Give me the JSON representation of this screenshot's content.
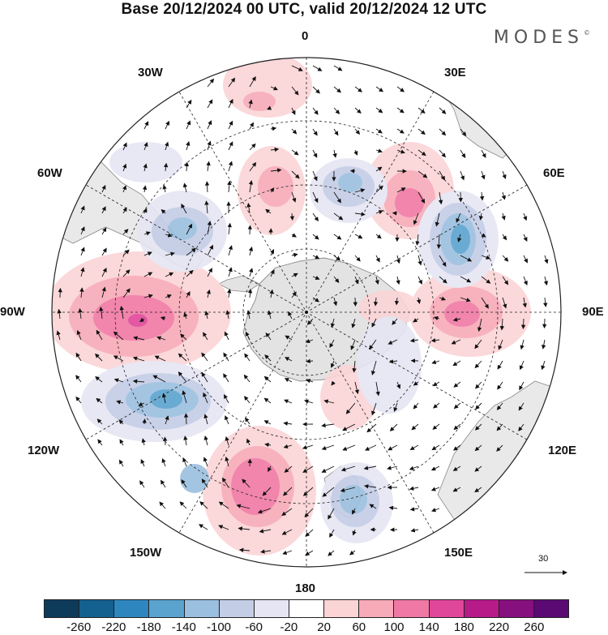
{
  "title": "Base 20/12/2024 00 UTC, valid 20/12/2024 12 UTC",
  "brand": "MODES",
  "brand_mark": "©",
  "longitude_labels": {
    "n0": "0",
    "e30": "30E",
    "e60": "60E",
    "e90": "90E",
    "e120": "120E",
    "e150": "150E",
    "s180": "180",
    "w150": "150W",
    "w120": "120W",
    "w90": "90W",
    "w60": "60W",
    "w30": "30W"
  },
  "reference_vector_label": "30",
  "colorbar": {
    "colors": [
      "#0e3b5a",
      "#14608f",
      "#2e86bf",
      "#5aa3cf",
      "#9bbfdf",
      "#c4cde6",
      "#e6e5f3",
      "#ffffff",
      "#fbd4d6",
      "#f7aab8",
      "#f078a4",
      "#e0469a",
      "#b61b88",
      "#86107e",
      "#5a0a72"
    ],
    "tick_labels": [
      "-260",
      "-220",
      "-180",
      "-140",
      "-100",
      "-60",
      "-20",
      "20",
      "60",
      "100",
      "140",
      "180",
      "220",
      "260"
    ]
  },
  "map_colors": {
    "land": "#e9e9e9",
    "antarctica": "#e3e3e3",
    "coast": "#8a8a8a",
    "grid": "#222222",
    "arrow": "#111111"
  }
}
